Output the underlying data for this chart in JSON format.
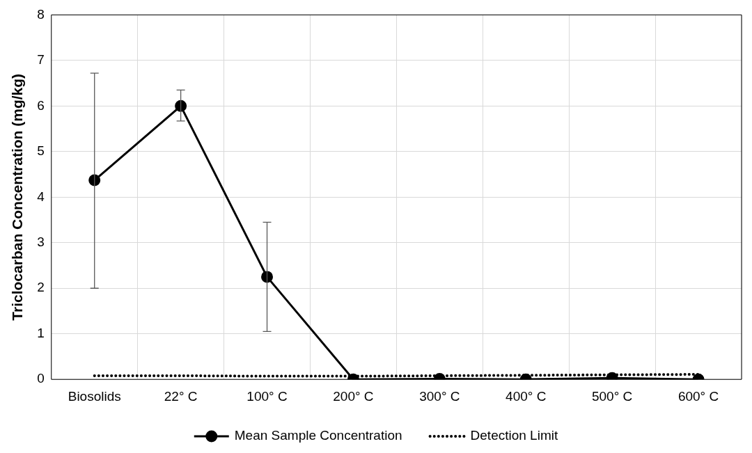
{
  "chart_data": {
    "type": "line",
    "ylabel": "Triclocarban Concentration (mg/kg)",
    "categories": [
      "Biosolids",
      "22° C",
      "100° C",
      "200° C",
      "300° C",
      "400° C",
      "500° C",
      "600° C"
    ],
    "series": [
      {
        "name": "Mean Sample Concentration",
        "color": "#000000",
        "values": [
          4.37,
          6.0,
          2.25,
          0.0,
          0.01,
          0.0,
          0.03,
          0.0
        ],
        "errors": [
          [
            2.0,
            6.72
          ],
          [
            5.67,
            6.35
          ],
          [
            1.05,
            3.45
          ],
          null,
          null,
          null,
          null,
          null
        ],
        "marker": "circle",
        "line_style": "solid"
      },
      {
        "name": "Detection Limit",
        "color": "#000000",
        "values": [
          0.08,
          0.08,
          0.07,
          0.07,
          0.08,
          0.09,
          0.1,
          0.11
        ],
        "marker": "none",
        "line_style": "dotted"
      }
    ],
    "ylim": [
      0,
      8
    ],
    "yticks": [
      0,
      1,
      2,
      3,
      4,
      5,
      6,
      7,
      8
    ],
    "grid": true,
    "legend": "bottom"
  }
}
